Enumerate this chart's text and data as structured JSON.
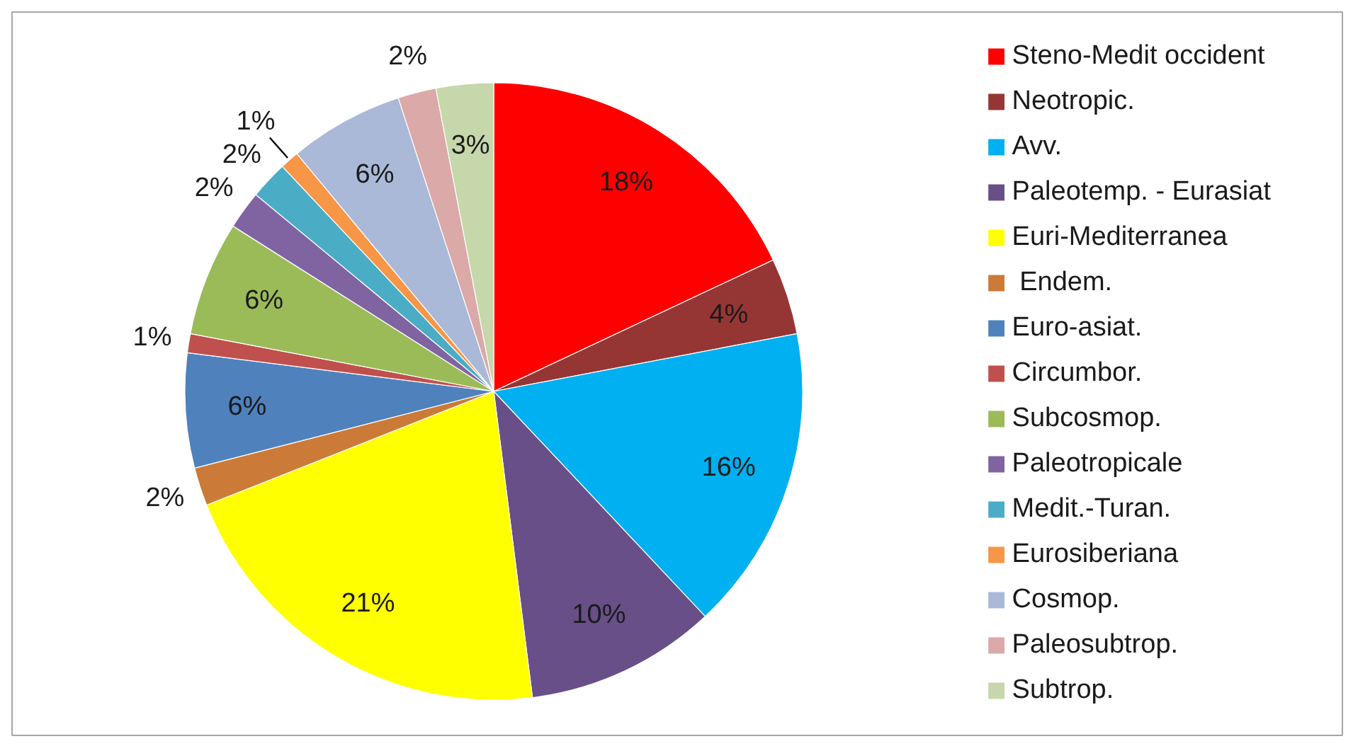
{
  "chart_data": {
    "type": "pie",
    "categories": [
      "Steno-Medit occident",
      "Neotropic.",
      "Avv.",
      "Paleotemp. - Eurasiat",
      "Euri-Mediterranea",
      " Endem.",
      "Euro-asiat.",
      "Circumbor.",
      "Subcosmop.",
      "Paleotropicale",
      "Medit.-Turan.",
      "Eurosiberiana",
      "Cosmop.",
      "Paleosubtrop.",
      "Subtrop."
    ],
    "values": [
      18,
      4,
      16,
      10,
      21,
      2,
      6,
      1,
      6,
      2,
      2,
      1,
      6,
      2,
      3
    ],
    "colors": [
      "#ff0000",
      "#963634",
      "#00b0f0",
      "#684f88",
      "#ffff00",
      "#cc7a38",
      "#4f81bd",
      "#c0504d",
      "#9bbb59",
      "#8064a2",
      "#4bacc6",
      "#f79646",
      "#aab9d8",
      "#daa9a8",
      "#c6d7ab"
    ],
    "value_labels": [
      "18%",
      "4%",
      "16%",
      "10%",
      "21%",
      "2%",
      "6%",
      "1%",
      "6%",
      "2%",
      "2%",
      "1%",
      "6%",
      "2%",
      "3%"
    ],
    "legend": "right"
  }
}
